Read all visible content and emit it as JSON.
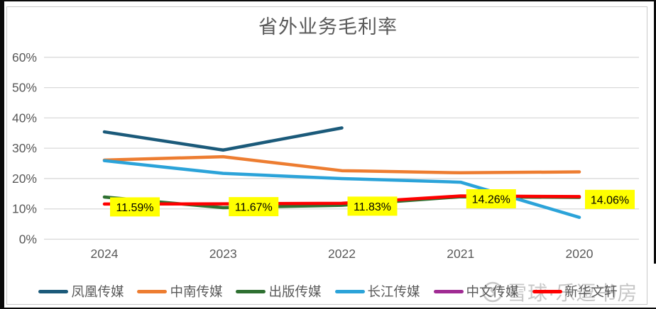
{
  "page": {
    "background": "#FFFFFF",
    "card_border_color": "#C9C9C9",
    "screenshot_edge_color": "#0B0B0B"
  },
  "chart_data": {
    "type": "line",
    "title": "省外业务毛利率",
    "categories": [
      "2024",
      "2023",
      "2022",
      "2021",
      "2020"
    ],
    "y_ticks_percent": [
      60,
      50,
      40,
      30,
      20,
      10,
      0
    ],
    "ylim": [
      0,
      60
    ],
    "grid": true,
    "legend_position": "bottom",
    "text_color": "#595959",
    "grid_color": "#D9D9D9",
    "data_label_bg": "#FFFF00",
    "data_label_text_color": "#000000",
    "series": [
      {
        "name": "凤凰传媒",
        "color": "#1B5A7A",
        "values": [
          35.4,
          29.4,
          36.7,
          null,
          null
        ]
      },
      {
        "name": "中南传媒",
        "color": "#ED7D31",
        "values": [
          26.1,
          27.2,
          22.6,
          21.9,
          22.2
        ]
      },
      {
        "name": "出版传媒",
        "color": "#2E7031",
        "values": [
          13.9,
          10.4,
          11.2,
          14.0,
          13.8
        ]
      },
      {
        "name": "长江传媒",
        "color": "#2BA3D9",
        "values": [
          25.9,
          21.7,
          20.0,
          18.8,
          7.2
        ]
      },
      {
        "name": "中文传媒",
        "color": "#A02B93",
        "values": [
          null,
          null,
          null,
          null,
          null
        ]
      },
      {
        "name": "新华文轩",
        "color": "#FE0000",
        "values": [
          11.59,
          11.67,
          11.83,
          14.26,
          14.06
        ],
        "data_labels": [
          "11.59%",
          "11.67%",
          "11.83%",
          "14.26%",
          "14.06%"
        ]
      }
    ]
  },
  "watermark": {
    "icon": "xueqiu-logo",
    "text": "雪球·乐逗书房"
  }
}
